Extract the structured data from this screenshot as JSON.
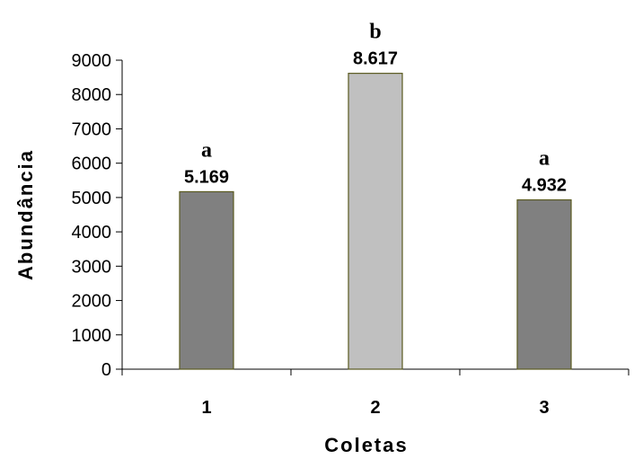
{
  "chart_data": {
    "type": "bar",
    "categories": [
      "1",
      "2",
      "3"
    ],
    "values": [
      5169,
      8617,
      4932
    ],
    "data_labels": [
      "5.169",
      "8.617",
      "4.932"
    ],
    "significance_letters": [
      "a",
      "b",
      "a"
    ],
    "bar_colors": [
      "#808080",
      "#c0c0c0",
      "#808080"
    ],
    "bar_border_color": "#5a5a20",
    "xlabel": "Coletas",
    "ylabel": "Abundância",
    "ylim": [
      0,
      9000
    ],
    "yticks": [
      0,
      1000,
      2000,
      3000,
      4000,
      5000,
      6000,
      7000,
      8000,
      9000
    ],
    "grid": false,
    "legend": "none"
  }
}
